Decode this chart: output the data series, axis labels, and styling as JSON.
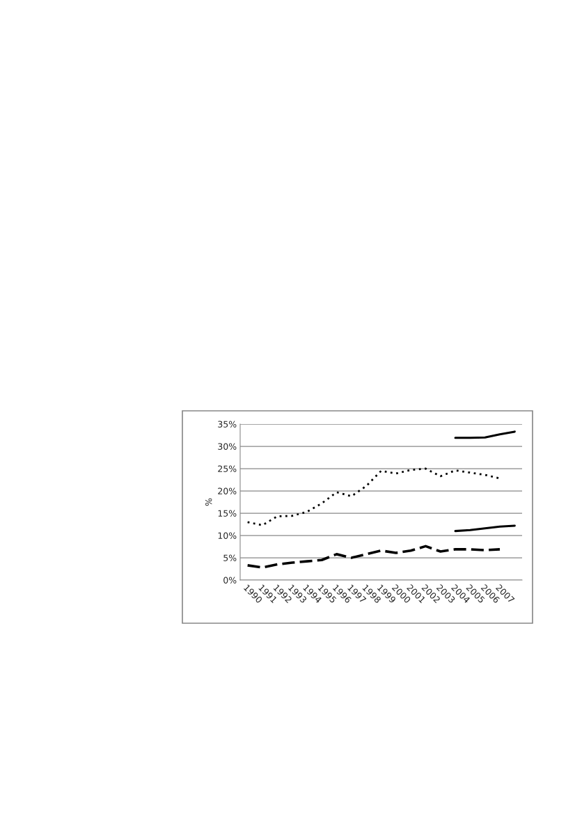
{
  "chart_data": {
    "type": "line",
    "ylabel": "%",
    "categories": [
      "1990",
      "1991",
      "1992",
      "1993",
      "1994",
      "1995",
      "1996",
      "1997",
      "1998",
      "1999",
      "2000",
      "2001",
      "2002",
      "2003",
      "2004",
      "2005",
      "2006",
      "2007",
      null
    ],
    "series": [
      {
        "color": "#000000",
        "line_style": "dotted",
        "values": [
          13.0,
          12.3,
          14.3,
          14.4,
          15.3,
          17.2,
          19.7,
          18.8,
          21.1,
          24.5,
          23.9,
          24.7,
          25.0,
          23.3,
          24.6,
          24.1,
          23.6,
          22.8,
          null
        ]
      },
      {
        "color": "#000000",
        "line_style": "dashed",
        "values": [
          3.3,
          2.8,
          3.5,
          3.9,
          4.2,
          4.5,
          5.8,
          5.0,
          5.8,
          6.6,
          6.1,
          6.6,
          7.6,
          6.4,
          6.9,
          6.9,
          6.7,
          6.9,
          null
        ]
      },
      {
        "color": "#000000",
        "line_style": "solid",
        "values": [
          null,
          null,
          null,
          null,
          null,
          null,
          null,
          null,
          null,
          null,
          null,
          null,
          null,
          null,
          31.9,
          31.9,
          32.0,
          32.7,
          33.3
        ]
      },
      {
        "color": "#000000",
        "line_style": "solid",
        "values": [
          null,
          null,
          null,
          null,
          null,
          null,
          null,
          null,
          null,
          null,
          null,
          null,
          null,
          null,
          11.0,
          11.2,
          11.6,
          12.0,
          12.2
        ]
      }
    ],
    "ylim": [
      0,
      35
    ],
    "yticks": [
      {
        "value": 0,
        "label": "0%"
      },
      {
        "value": 5,
        "label": "5%"
      },
      {
        "value": 10,
        "label": "10%"
      },
      {
        "value": 15,
        "label": "15%"
      },
      {
        "value": 20,
        "label": "20%"
      },
      {
        "value": 25,
        "label": "25%"
      },
      {
        "value": 30,
        "label": "30%"
      },
      {
        "value": 35,
        "label": "35%"
      }
    ],
    "grid": "y",
    "marker": "none",
    "legend": false
  }
}
